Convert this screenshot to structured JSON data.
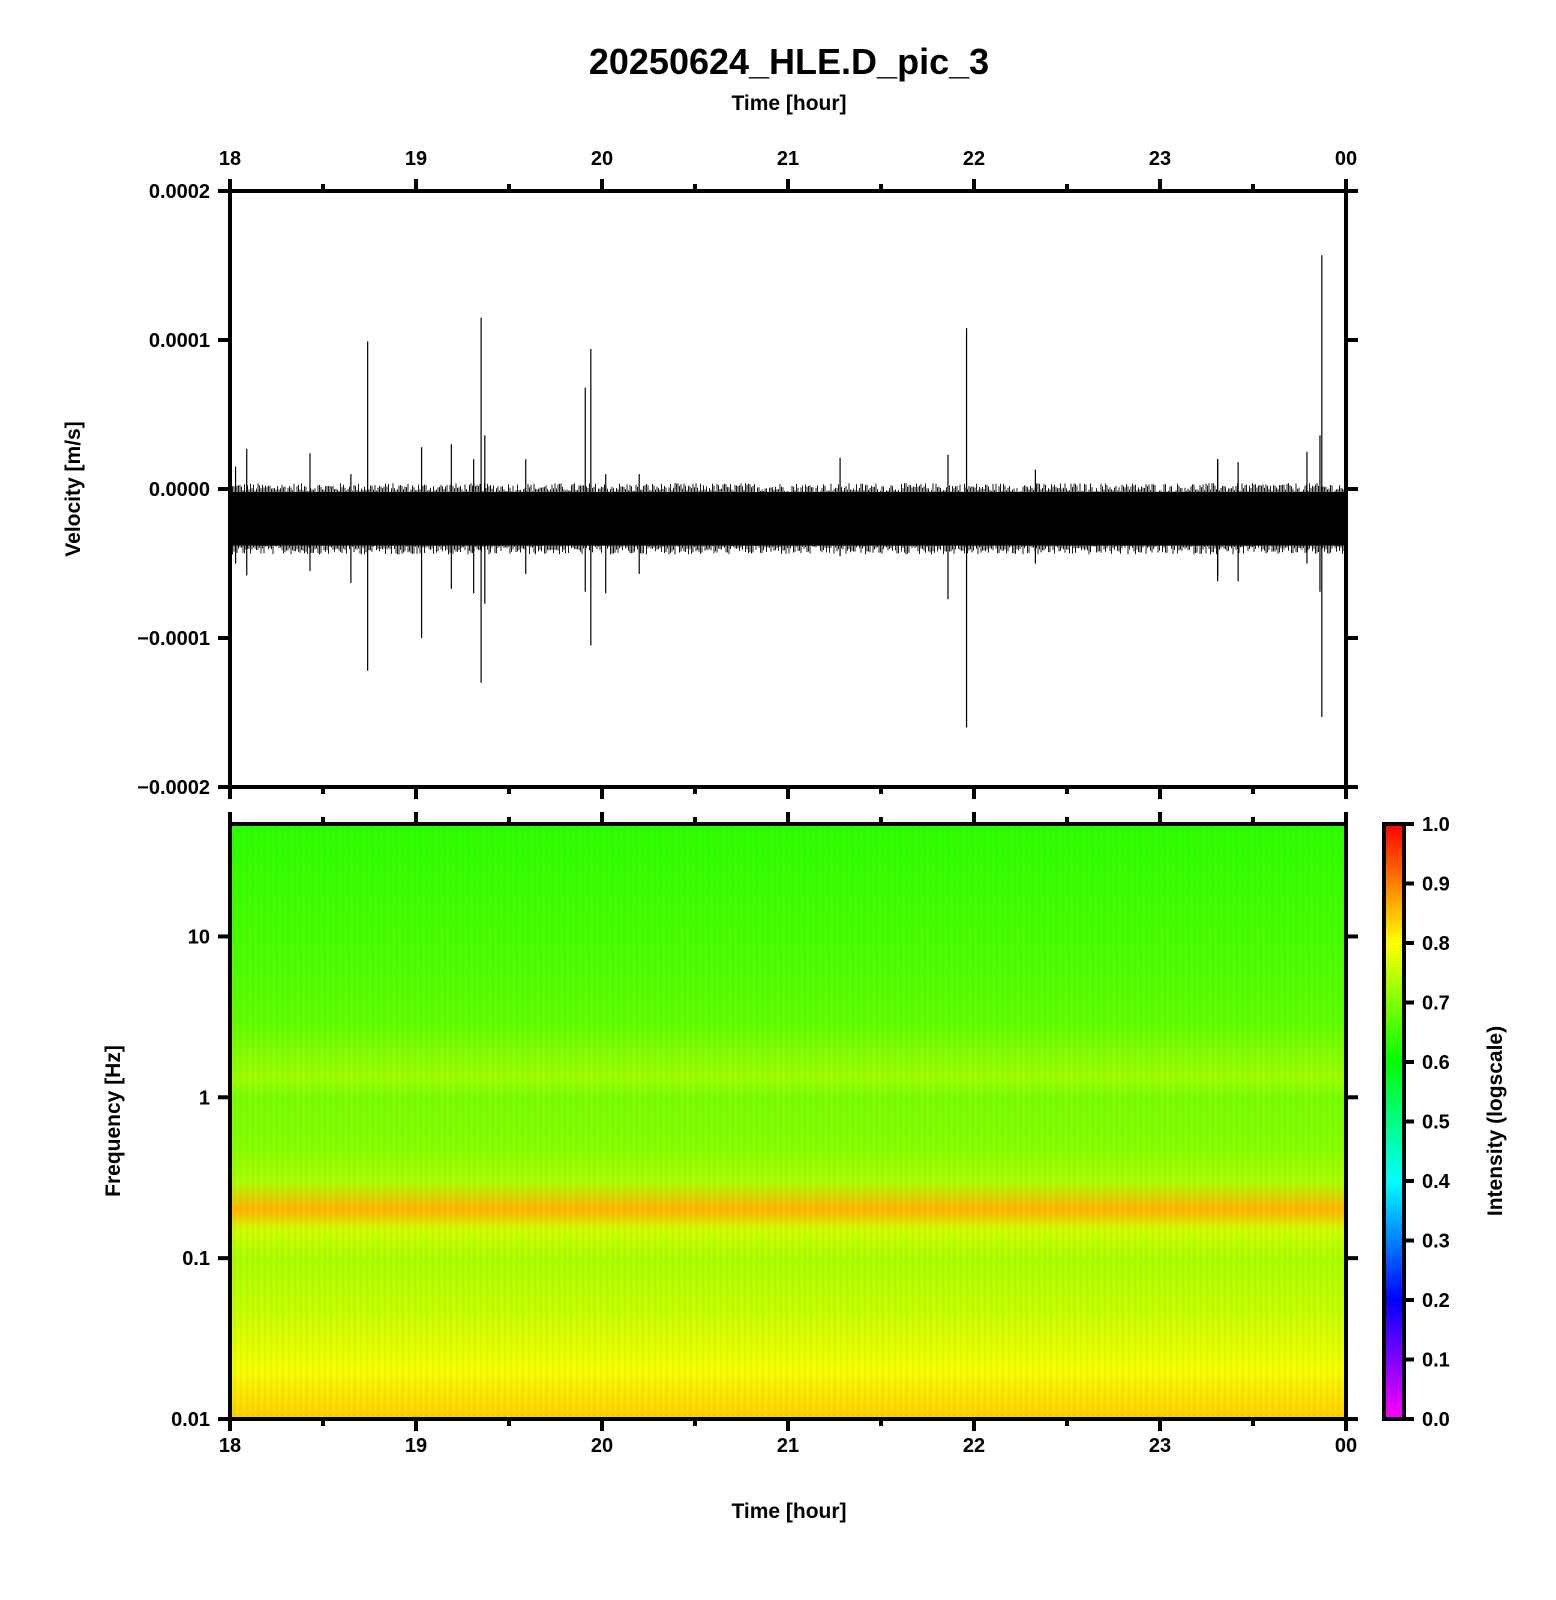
{
  "figure": {
    "title": "20250624_HLE.D_pic_3",
    "top_xlabel": "Time [hour]",
    "bottom_xlabel": "Time [hour]",
    "waveform_ylabel": "Velocity [m/s]",
    "spectrogram_ylabel": "Frequency [Hz]",
    "colorbar_label": "Intensity (logscale)"
  },
  "chart_data": [
    {
      "type": "line",
      "panel": "waveform",
      "title": "20250624_HLE.D_pic_3",
      "xlabel": "Time [hour]",
      "ylabel": "Velocity [m/s]",
      "xlim": [
        18,
        24
      ],
      "ylim": [
        -0.0002,
        0.0002
      ],
      "x_tick_labels": [
        "18",
        "19",
        "20",
        "21",
        "22",
        "23",
        "00"
      ],
      "y_tick_labels": [
        "0.0002",
        "0.0001",
        "0.0000",
        "−0.0001",
        "−0.0002"
      ],
      "grid": false,
      "noise_band": {
        "center": -2.2e-05,
        "typical_upper": 2e-06,
        "typical_lower": -4.2e-05
      },
      "spikes": [
        {
          "x": 18.03,
          "max": 1.5e-05,
          "min": -5e-05
        },
        {
          "x": 18.09,
          "max": 2.7e-05,
          "min": -5.8e-05
        },
        {
          "x": 18.43,
          "max": 2.4e-05,
          "min": -5.5e-05
        },
        {
          "x": 18.65,
          "max": 1e-05,
          "min": -6.3e-05
        },
        {
          "x": 18.74,
          "max": 9.9e-05,
          "min": -0.000122
        },
        {
          "x": 19.03,
          "max": 2.8e-05,
          "min": -0.0001
        },
        {
          "x": 19.19,
          "max": 3e-05,
          "min": -6.7e-05
        },
        {
          "x": 19.31,
          "max": 2e-05,
          "min": -7e-05
        },
        {
          "x": 19.35,
          "max": 0.000115,
          "min": -0.00013
        },
        {
          "x": 19.37,
          "max": 3.6e-05,
          "min": -7.7e-05
        },
        {
          "x": 19.59,
          "max": 2e-05,
          "min": -5.7e-05
        },
        {
          "x": 19.91,
          "max": 6.8e-05,
          "min": -6.9e-05
        },
        {
          "x": 19.94,
          "max": 9.4e-05,
          "min": -0.000105
        },
        {
          "x": 20.02,
          "max": 1e-05,
          "min": -7e-05
        },
        {
          "x": 20.2,
          "max": 1e-05,
          "min": -5.7e-05
        },
        {
          "x": 21.28,
          "max": 2.1e-05,
          "min": -4.5e-05
        },
        {
          "x": 21.86,
          "max": 2.3e-05,
          "min": -7.4e-05
        },
        {
          "x": 21.96,
          "max": 0.000108,
          "min": -0.00016
        },
        {
          "x": 22.33,
          "max": 1.3e-05,
          "min": -5e-05
        },
        {
          "x": 23.31,
          "max": 2e-05,
          "min": -5.8e-05
        },
        {
          "x": 23.31,
          "max": 2e-05,
          "min": -6.2e-05
        },
        {
          "x": 23.42,
          "max": 1.8e-05,
          "min": -6.2e-05
        },
        {
          "x": 23.79,
          "max": 2.5e-05,
          "min": -5e-05
        },
        {
          "x": 23.86,
          "max": 3.6e-05,
          "min": -6.9e-05
        },
        {
          "x": 23.87,
          "max": 0.000157,
          "min": -0.000153
        }
      ]
    },
    {
      "type": "heatmap",
      "panel": "spectrogram",
      "xlabel": "Time [hour]",
      "ylabel": "Frequency [Hz]",
      "xlim": [
        18,
        24
      ],
      "ylim": [
        0.01,
        50
      ],
      "yscale": "log",
      "x_tick_labels": [
        "18",
        "19",
        "20",
        "21",
        "22",
        "23",
        "00"
      ],
      "y_tick_labels": [
        "10",
        "1",
        "0.1",
        "0.01"
      ],
      "colorbar": {
        "label": "Intensity (logscale)",
        "range": [
          0.0,
          1.0
        ],
        "tick_labels": [
          "1.0",
          "0.9",
          "0.8",
          "0.7",
          "0.6",
          "0.5",
          "0.4",
          "0.3",
          "0.2",
          "0.1",
          "0.0"
        ],
        "colors": [
          "#ff00ff",
          "#0000ff",
          "#00ffff",
          "#00ff00",
          "#ffff00",
          "#ff0000"
        ]
      },
      "intensity_profile": [
        {
          "freq_hz": 50,
          "intensity": 0.63
        },
        {
          "freq_hz": 10,
          "intensity": 0.65
        },
        {
          "freq_hz": 3,
          "intensity": 0.67
        },
        {
          "freq_hz": 1.3,
          "intensity": 0.72
        },
        {
          "freq_hz": 1,
          "intensity": 0.69
        },
        {
          "freq_hz": 0.5,
          "intensity": 0.7
        },
        {
          "freq_hz": 0.3,
          "intensity": 0.73
        },
        {
          "freq_hz": 0.2,
          "intensity": 0.86
        },
        {
          "freq_hz": 0.15,
          "intensity": 0.76
        },
        {
          "freq_hz": 0.1,
          "intensity": 0.73
        },
        {
          "freq_hz": 0.05,
          "intensity": 0.75
        },
        {
          "freq_hz": 0.02,
          "intensity": 0.79
        },
        {
          "freq_hz": 0.01,
          "intensity": 0.84
        }
      ]
    }
  ]
}
